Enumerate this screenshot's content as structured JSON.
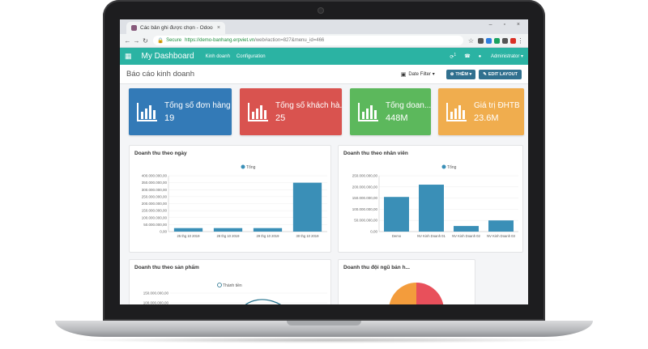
{
  "browser": {
    "tab_title": "Các bản ghi được chọn - Odoo",
    "secure_label": "Secure",
    "url_domain": "https://demo-banhang.erpviet.vn",
    "url_path": "/web#action=827&menu_id=466"
  },
  "navbar": {
    "brand": "My Dashboard",
    "menu": [
      "Kinh doanh",
      "Configuration"
    ],
    "notifications": "1",
    "user": "Administrator"
  },
  "control": {
    "title": "Báo cáo kinh doanh",
    "date_filter": "Date Filter",
    "add_button": "THÊM",
    "edit_button": "EDIT LAYOUT"
  },
  "kpis": [
    {
      "label": "Tổng số đơn hàng",
      "value": "19",
      "color": "#337ab7"
    },
    {
      "label": "Tổng số khách hà...",
      "value": "25",
      "color": "#d9534f"
    },
    {
      "label": "Tổng doan...",
      "value": "448M",
      "color": "#5cb85c"
    },
    {
      "label": "Giá trị ĐHTB",
      "value": "23.6M",
      "color": "#f0ad4e"
    }
  ],
  "colors": {
    "bar": "#3a8fb7",
    "navbar": "#2bb3a3"
  },
  "chart_data": [
    {
      "type": "bar",
      "title": "Doanh thu theo ngày",
      "series": [
        {
          "name": "Tổng",
          "values": [
            25000000,
            25000000,
            25000000,
            350000000
          ]
        }
      ],
      "categories": [
        "25 thg 10 2019",
        "28 thg 10 2019",
        "29 thg 10 2019",
        "30 thg 10 2019"
      ],
      "yticks": [
        "400.000.000,00",
        "350.000.000,00",
        "300.000.000,00",
        "250.000.000,00",
        "200.000.000,00",
        "150.000.000,00",
        "100.000.000,00",
        "50.000.000,00",
        "0,00"
      ],
      "ylim": [
        0,
        400000000
      ]
    },
    {
      "type": "bar",
      "title": "Doanh thu theo nhân viên",
      "series": [
        {
          "name": "Tổng",
          "values": [
            155000000,
            210000000,
            25000000,
            50000000
          ]
        }
      ],
      "categories": [
        "Demo",
        "NV Kinh Doanh 01",
        "NV Kinh Doanh 02",
        "NV Kinh Doanh 03"
      ],
      "yticks": [
        "250.000.000,00",
        "200.000.000,00",
        "150.000.000,00",
        "100.000.000,00",
        "50.000.000,00",
        "0,00"
      ],
      "ylim": [
        0,
        250000000
      ]
    },
    {
      "type": "line",
      "title": "Doanh thu theo sản phẩm",
      "series": [
        {
          "name": "Thành tiền"
        }
      ],
      "yticks": [
        "150.000.000,00",
        "100.000.000,00"
      ]
    },
    {
      "type": "pie",
      "title": "Doanh thu đội ngũ bán h...",
      "slices_colors": [
        "#f39c3c",
        "#e8505b"
      ]
    }
  ]
}
